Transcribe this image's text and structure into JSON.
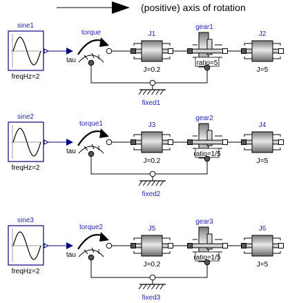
{
  "header": {
    "caption": "(positive) axis of rotation"
  },
  "colors": {
    "label_blue": "#1f1fb4",
    "signal_blue": "#00007f",
    "inertia_gray": "#b5b5b5",
    "flange_dark": "#555555",
    "flange_open": "#ffffff"
  },
  "rows": [
    {
      "source": {
        "name": "sine1",
        "param": "freqHz=2",
        "icon": "sine-wave-icon"
      },
      "torque": {
        "name": "torque",
        "port": "tau",
        "icon": "torque-arc-icon"
      },
      "inertia_a": {
        "name": "J1",
        "param": "J=0.2",
        "icon": "inertia-icon"
      },
      "gear": {
        "name": "gear1",
        "param": "ratio=5",
        "icon": "gear-icon"
      },
      "inertia_b": {
        "name": "J2",
        "param": "J=5",
        "icon": "inertia-icon"
      },
      "fixed": {
        "name": "fixed1",
        "icon": "ground-icon"
      }
    },
    {
      "source": {
        "name": "sine2",
        "param": "freqHz=2",
        "icon": "sine-wave-icon"
      },
      "torque": {
        "name": "torque1",
        "port": "tau",
        "icon": "torque-arc-icon"
      },
      "inertia_a": {
        "name": "J3",
        "param": "J=0.2",
        "icon": "inertia-icon"
      },
      "gear": {
        "name": "gear2",
        "param": "ratio=1/5",
        "icon": "gear-icon"
      },
      "inertia_b": {
        "name": "J4",
        "param": "J=5",
        "icon": "inertia-icon"
      },
      "fixed": {
        "name": "fixed2",
        "icon": "ground-icon"
      }
    },
    {
      "source": {
        "name": "sine3",
        "param": "freqHz=2",
        "icon": "sine-wave-icon"
      },
      "torque": {
        "name": "torque2",
        "port": "tau",
        "icon": "torque-arc-icon"
      },
      "inertia_a": {
        "name": "J5",
        "param": "J=0.2",
        "icon": "inertia-icon"
      },
      "gear": {
        "name": "gear3",
        "param": "ratio=1/5",
        "icon": "gear-icon"
      },
      "inertia_b": {
        "name": "J6",
        "param": "J=5",
        "icon": "inertia-icon"
      },
      "fixed": {
        "name": "fixed3",
        "icon": "ground-icon"
      }
    }
  ]
}
